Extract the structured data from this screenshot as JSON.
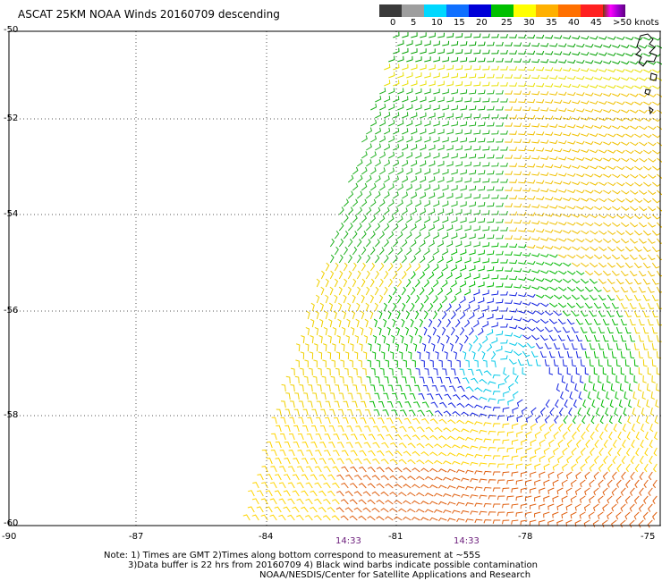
{
  "title": "ASCAT 25KM NOAA Winds 20160709 descending",
  "legend": {
    "colors": [
      "#3a3a3a",
      "#9e9e9e",
      "#00d8ff",
      "#0a88ff",
      "#0000e0",
      "#00c000",
      "#ffff00",
      "#ffb000",
      "#ff7000",
      "#ff2020",
      "#d01010",
      "#7a3a00",
      "#a06040",
      "#ff00ff",
      "#a000d0",
      "#600080"
    ],
    "labels": [
      "0",
      "5",
      "10",
      "15",
      "20",
      "25",
      "30",
      "35",
      "40",
      "45",
      ">50 knots"
    ]
  },
  "lat_labels": [
    "-50",
    "-52",
    "-54",
    "-56",
    "-58",
    "-60"
  ],
  "lon_labels": [
    "-90",
    "-87",
    "-84",
    "-81",
    "-78",
    "-75"
  ],
  "time_labels": [
    "14:33",
    "14:33"
  ],
  "notes": [
    "Note: 1) Times are GMT 2)Times along bottom correspond to measurement at ~55S",
    "3)Data buffer is 22 hrs from 20160709 4) Black wind barbs indicate possible contamination",
    "NOAA/NESDIS/Center for Satellite Applications and Research"
  ]
}
